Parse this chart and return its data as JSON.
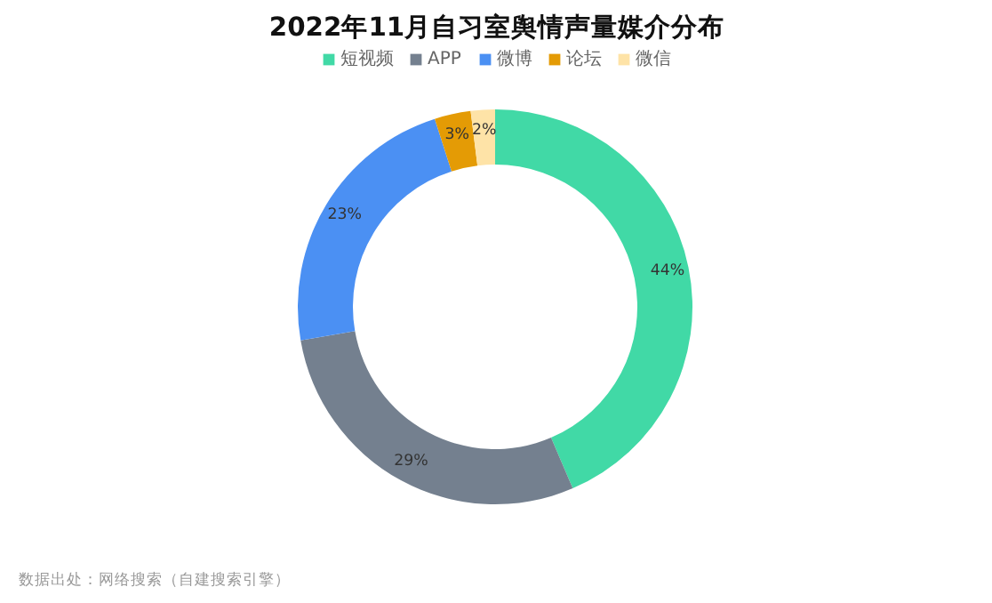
{
  "chart_data": {
    "type": "donut",
    "title": "2022年11月自习室舆情声量媒介分布",
    "categories": [
      "短视频",
      "APP",
      "微博",
      "论坛",
      "微信"
    ],
    "values": [
      44,
      29,
      23,
      3,
      2
    ],
    "colors": [
      "#41d9a6",
      "#74808f",
      "#4b90f3",
      "#e49b05",
      "#fee3a7"
    ],
    "value_labels": [
      "44%",
      "29%",
      "23%",
      "3%",
      "2%"
    ],
    "legend": "top",
    "annotations": [
      "数据出处：网络搜索（自建搜索引擎）"
    ]
  }
}
